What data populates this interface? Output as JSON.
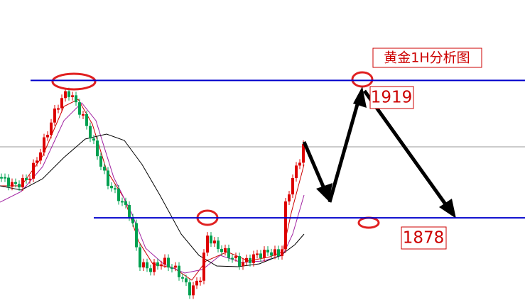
{
  "chart_data": {
    "type": "levels",
    "title": "黄金1H分析图",
    "levels": [
      1919,
      1878
    ],
    "ylim": [
      1852,
      1943
    ],
    "color": "#0000cc"
  }
}
